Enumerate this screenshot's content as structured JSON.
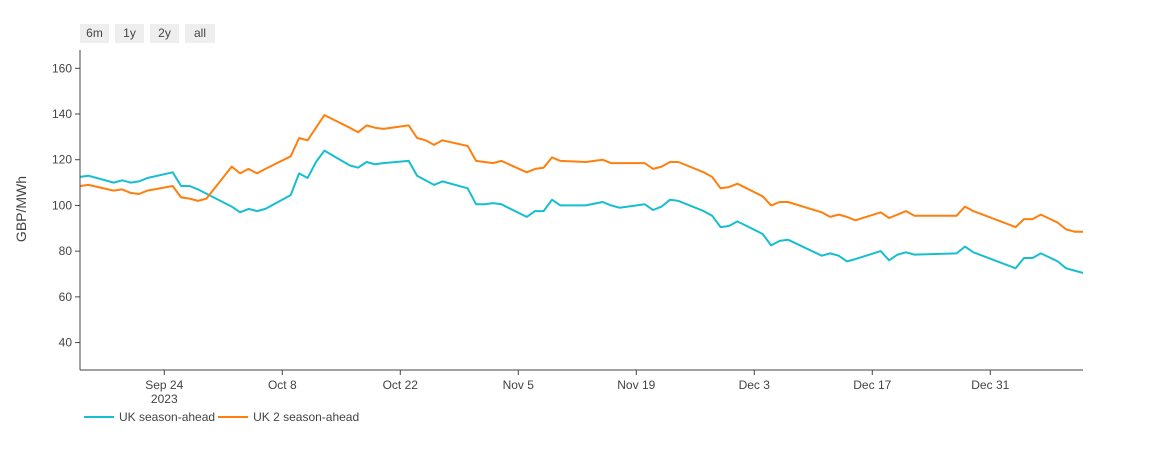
{
  "range_buttons": [
    "6m",
    "1y",
    "2y",
    "all"
  ],
  "chart_data": {
    "type": "line",
    "ylabel": "GBP/MWh",
    "xlabel": "",
    "ylim": [
      28,
      168
    ],
    "xlim": [
      "2023-09-10",
      "2024-01-10"
    ],
    "y_ticks": [
      40,
      60,
      80,
      100,
      120,
      140,
      160
    ],
    "x_ticks": [
      {
        "date": "2023-09-24",
        "label": "Sep 24",
        "sublabel": "2023"
      },
      {
        "date": "2023-10-08",
        "label": "Oct 8"
      },
      {
        "date": "2023-10-22",
        "label": "Oct 22"
      },
      {
        "date": "2023-11-05",
        "label": "Nov 5"
      },
      {
        "date": "2023-11-19",
        "label": "Nov 19"
      },
      {
        "date": "2023-12-03",
        "label": "Dec 3"
      },
      {
        "date": "2023-12-17",
        "label": "Dec 17"
      },
      {
        "date": "2023-12-31",
        "label": "Dec 31"
      }
    ],
    "grid": false,
    "legend_position": "bottom-left",
    "series": [
      {
        "name": "UK season-ahead",
        "color": "#17becf",
        "points": [
          [
            "2023-09-10",
            113.5
          ],
          [
            "2023-09-11",
            113.5
          ],
          [
            "2023-09-12",
            112
          ],
          [
            "2023-09-13",
            114.5
          ],
          [
            "2023-09-14",
            112.5
          ],
          [
            "2023-09-15",
            113
          ],
          [
            "2023-09-18",
            110
          ],
          [
            "2023-09-19",
            111
          ],
          [
            "2023-09-20",
            110
          ],
          [
            "2023-09-21",
            110.5
          ],
          [
            "2023-09-22",
            112
          ],
          [
            "2023-09-25",
            114.5
          ],
          [
            "2023-09-26",
            108.5
          ],
          [
            "2023-09-27",
            108.5
          ],
          [
            "2023-09-28",
            107
          ],
          [
            "2023-10-02",
            99.5
          ],
          [
            "2023-10-03",
            97
          ],
          [
            "2023-10-04",
            98.5
          ],
          [
            "2023-10-05",
            97.5
          ],
          [
            "2023-10-06",
            98.5
          ],
          [
            "2023-10-09",
            104.5
          ],
          [
            "2023-10-10",
            114
          ],
          [
            "2023-10-11",
            112
          ],
          [
            "2023-10-12",
            119
          ],
          [
            "2023-10-13",
            124
          ],
          [
            "2023-10-16",
            117.5
          ],
          [
            "2023-10-17",
            116.5
          ],
          [
            "2023-10-18",
            119
          ],
          [
            "2023-10-19",
            118
          ],
          [
            "2023-10-20",
            118.5
          ],
          [
            "2023-10-23",
            119.5
          ],
          [
            "2023-10-24",
            113
          ],
          [
            "2023-10-26",
            109
          ],
          [
            "2023-10-27",
            110.5
          ],
          [
            "2023-10-30",
            107.5
          ],
          [
            "2023-10-31",
            100.5
          ],
          [
            "2023-11-01",
            100.5
          ],
          [
            "2023-11-02",
            101
          ],
          [
            "2023-11-03",
            100.5
          ],
          [
            "2023-11-06",
            95
          ],
          [
            "2023-11-07",
            97.5
          ],
          [
            "2023-11-08",
            97.5
          ],
          [
            "2023-11-09",
            102.5
          ],
          [
            "2023-11-10",
            100
          ],
          [
            "2023-11-13",
            100
          ],
          [
            "2023-11-15",
            101.5
          ],
          [
            "2023-11-16",
            100
          ],
          [
            "2023-11-17",
            99
          ],
          [
            "2023-11-20",
            100.5
          ],
          [
            "2023-11-21",
            98
          ],
          [
            "2023-11-22",
            99.5
          ],
          [
            "2023-11-23",
            102.5
          ],
          [
            "2023-11-24",
            102
          ],
          [
            "2023-11-27",
            97.5
          ],
          [
            "2023-11-28",
            95.5
          ],
          [
            "2023-11-29",
            90.5
          ],
          [
            "2023-11-30",
            91
          ],
          [
            "2023-12-01",
            93
          ],
          [
            "2023-12-04",
            87.5
          ],
          [
            "2023-12-05",
            82.5
          ],
          [
            "2023-12-06",
            84.5
          ],
          [
            "2023-12-07",
            85
          ],
          [
            "2023-12-11",
            78
          ],
          [
            "2023-12-12",
            79
          ],
          [
            "2023-12-13",
            78
          ],
          [
            "2023-12-14",
            75.5
          ],
          [
            "2023-12-15",
            76.5
          ],
          [
            "2023-12-18",
            80
          ],
          [
            "2023-12-19",
            76
          ],
          [
            "2023-12-20",
            78.5
          ],
          [
            "2023-12-21",
            79.5
          ],
          [
            "2023-12-22",
            78.5
          ],
          [
            "2023-12-27",
            79
          ],
          [
            "2023-12-28",
            82
          ],
          [
            "2023-12-29",
            79.5
          ],
          [
            "2024-01-03",
            72.5
          ],
          [
            "2024-01-04",
            77
          ],
          [
            "2024-01-05",
            77
          ],
          [
            "2024-01-06",
            79
          ],
          [
            "2024-01-08",
            75.5
          ],
          [
            "2024-01-09",
            72.5
          ],
          [
            "2024-01-10",
            71.5
          ],
          [
            "2024-01-11",
            70.5
          ],
          [
            "2024-01-12",
            69.5
          ],
          [
            "2024-01-13",
            70
          ]
        ]
      },
      {
        "name": "UK 2 season-ahead",
        "color": "#ff7f0e",
        "points": [
          [
            "2023-09-10",
            109.5
          ],
          [
            "2023-09-11",
            109.5
          ],
          [
            "2023-09-12",
            107.5
          ],
          [
            "2023-09-13",
            110
          ],
          [
            "2023-09-14",
            108.5
          ],
          [
            "2023-09-15",
            109
          ],
          [
            "2023-09-18",
            106.5
          ],
          [
            "2023-09-19",
            107
          ],
          [
            "2023-09-20",
            105.5
          ],
          [
            "2023-09-21",
            105
          ],
          [
            "2023-09-22",
            106.5
          ],
          [
            "2023-09-25",
            108.5
          ],
          [
            "2023-09-26",
            103.5
          ],
          [
            "2023-09-27",
            103
          ],
          [
            "2023-09-28",
            102
          ],
          [
            "2023-09-29",
            103
          ],
          [
            "2023-10-02",
            117
          ],
          [
            "2023-10-03",
            114
          ],
          [
            "2023-10-04",
            116
          ],
          [
            "2023-10-05",
            114
          ],
          [
            "2023-10-06",
            116
          ],
          [
            "2023-10-09",
            121.5
          ],
          [
            "2023-10-10",
            129.5
          ],
          [
            "2023-10-11",
            128.5
          ],
          [
            "2023-10-12",
            134
          ],
          [
            "2023-10-13",
            139.5
          ],
          [
            "2023-10-16",
            134
          ],
          [
            "2023-10-17",
            132
          ],
          [
            "2023-10-18",
            135
          ],
          [
            "2023-10-19",
            134
          ],
          [
            "2023-10-20",
            133.5
          ],
          [
            "2023-10-23",
            135
          ],
          [
            "2023-10-24",
            129.5
          ],
          [
            "2023-10-25",
            128.5
          ],
          [
            "2023-10-26",
            126.5
          ],
          [
            "2023-10-27",
            128.5
          ],
          [
            "2023-10-30",
            126
          ],
          [
            "2023-10-31",
            119.5
          ],
          [
            "2023-11-02",
            118.5
          ],
          [
            "2023-11-03",
            119.5
          ],
          [
            "2023-11-06",
            114.5
          ],
          [
            "2023-11-07",
            116
          ],
          [
            "2023-11-08",
            116.5
          ],
          [
            "2023-11-09",
            121
          ],
          [
            "2023-11-10",
            119.5
          ],
          [
            "2023-11-13",
            119
          ],
          [
            "2023-11-15",
            120
          ],
          [
            "2023-11-16",
            118.5
          ],
          [
            "2023-11-20",
            118.5
          ],
          [
            "2023-11-21",
            116
          ],
          [
            "2023-11-22",
            117
          ],
          [
            "2023-11-23",
            119
          ],
          [
            "2023-11-24",
            119
          ],
          [
            "2023-11-27",
            114.5
          ],
          [
            "2023-11-28",
            112.5
          ],
          [
            "2023-11-29",
            107.5
          ],
          [
            "2023-11-30",
            108
          ],
          [
            "2023-12-01",
            109.5
          ],
          [
            "2023-12-04",
            104
          ],
          [
            "2023-12-05",
            100
          ],
          [
            "2023-12-06",
            101.5
          ],
          [
            "2023-12-07",
            101.5
          ],
          [
            "2023-12-11",
            97
          ],
          [
            "2023-12-12",
            95
          ],
          [
            "2023-12-13",
            96
          ],
          [
            "2023-12-14",
            95
          ],
          [
            "2023-12-15",
            93.5
          ],
          [
            "2023-12-18",
            97
          ],
          [
            "2023-12-19",
            94.5
          ],
          [
            "2023-12-20",
            96
          ],
          [
            "2023-12-21",
            97.5
          ],
          [
            "2023-12-22",
            95.5
          ],
          [
            "2023-12-27",
            95.5
          ],
          [
            "2023-12-28",
            99.5
          ],
          [
            "2023-12-29",
            97.5
          ],
          [
            "2024-01-03",
            90.5
          ],
          [
            "2024-01-04",
            94
          ],
          [
            "2024-01-05",
            94
          ],
          [
            "2024-01-06",
            96
          ],
          [
            "2024-01-08",
            92.5
          ],
          [
            "2024-01-09",
            89.5
          ],
          [
            "2024-01-10",
            88.5
          ],
          [
            "2024-01-11",
            88.5
          ],
          [
            "2024-01-12",
            87
          ],
          [
            "2024-01-13",
            88
          ]
        ]
      }
    ]
  }
}
